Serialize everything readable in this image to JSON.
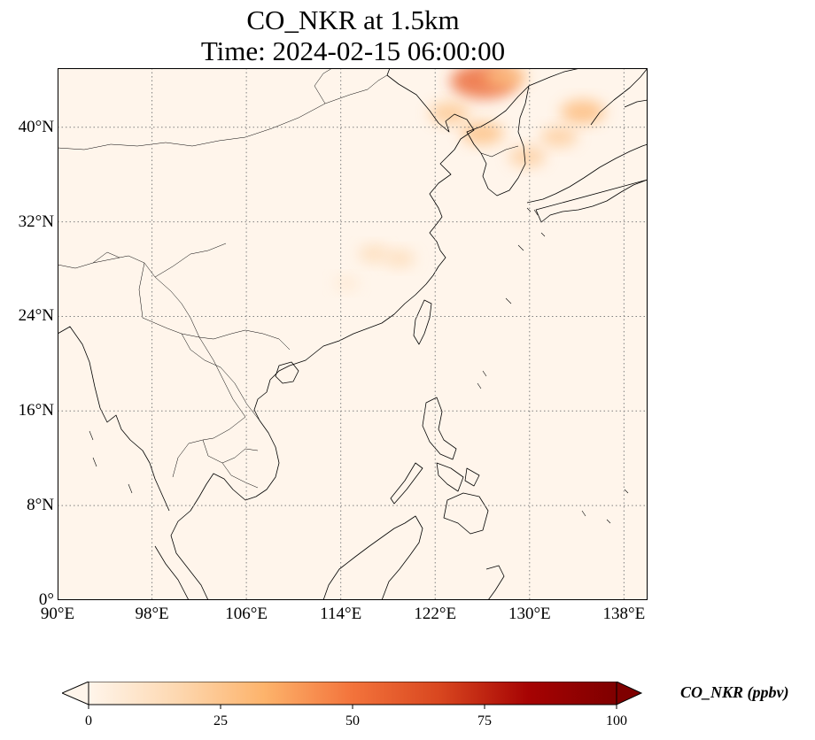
{
  "title": {
    "line1": "CO_NKR at 1.5km",
    "line2": "Time: 2024-02-15 06:00:00"
  },
  "map": {
    "projection": "PlateCarree",
    "extent": {
      "lon_min": 90,
      "lon_max": 140,
      "lat_min": 0,
      "lat_max": 45
    },
    "lat_ticks": [
      {
        "value": 0,
        "label": "0°"
      },
      {
        "value": 8,
        "label": "8°N"
      },
      {
        "value": 16,
        "label": "16°N"
      },
      {
        "value": 24,
        "label": "24°N"
      },
      {
        "value": 32,
        "label": "32°N"
      },
      {
        "value": 40,
        "label": "40°N"
      }
    ],
    "lon_ticks": [
      {
        "value": 90,
        "label": "90°E"
      },
      {
        "value": 98,
        "label": "98°E"
      },
      {
        "value": 106,
        "label": "106°E"
      },
      {
        "value": 114,
        "label": "114°E"
      },
      {
        "value": 122,
        "label": "122°E"
      },
      {
        "value": 130,
        "label": "130°E"
      },
      {
        "value": 138,
        "label": "138°E"
      }
    ],
    "gridlines": true,
    "gridline_style": "dotted",
    "background_color": "#fff5eb",
    "coastline_color": "#000000",
    "plumes": [
      {
        "lon": 126.1,
        "lat": 43.9,
        "level": 55
      },
      {
        "lon": 123.2,
        "lat": 41.2,
        "level": 25
      },
      {
        "lon": 126.0,
        "lat": 39.5,
        "level": 28
      },
      {
        "lon": 129.8,
        "lat": 37.5,
        "level": 22
      },
      {
        "lon": 134.5,
        "lat": 41.3,
        "level": 30
      },
      {
        "lon": 132.5,
        "lat": 39.2,
        "level": 22
      },
      {
        "lon": 116.8,
        "lat": 29.3,
        "level": 15
      },
      {
        "lon": 119.0,
        "lat": 28.9,
        "level": 15
      },
      {
        "lon": 114.5,
        "lat": 26.8,
        "level": 8
      },
      {
        "lon": 128.0,
        "lat": 44.3,
        "level": 28
      }
    ]
  },
  "colorbar": {
    "colormap": "OrRd",
    "min": 0,
    "max": 100,
    "extend": "both",
    "ticks": [
      {
        "value": 0,
        "label": "0"
      },
      {
        "value": 25,
        "label": "25"
      },
      {
        "value": 50,
        "label": "50"
      },
      {
        "value": 75,
        "label": "75"
      },
      {
        "value": 100,
        "label": "100"
      }
    ],
    "label": "CO_NKR (ppbv)",
    "colors": [
      "#fff5eb",
      "#fdd8b1",
      "#fdb36b",
      "#f3733b",
      "#d8461f",
      "#a60303",
      "#7f0000"
    ]
  }
}
